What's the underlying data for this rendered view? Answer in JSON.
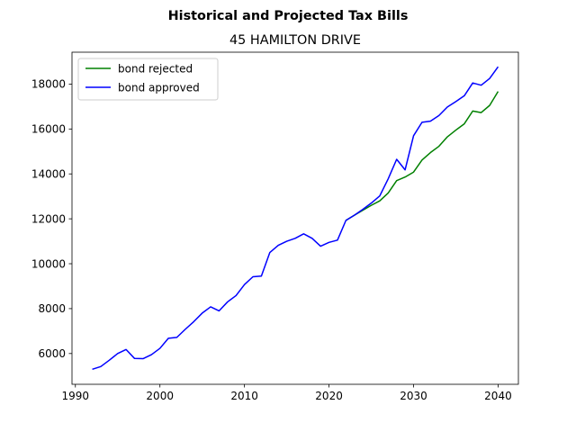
{
  "chart_data": {
    "type": "line",
    "title": "Historical and Projected Tax Bills",
    "subtitle": "45 HAMILTON DRIVE",
    "xlabel": "",
    "ylabel": "",
    "xlim": [
      1989.6,
      2042.4
    ],
    "ylim": [
      4630,
      19420
    ],
    "xticks": [
      1990,
      2000,
      2010,
      2020,
      2030,
      2040
    ],
    "yticks": [
      6000,
      8000,
      10000,
      12000,
      14000,
      16000,
      18000
    ],
    "grid": false,
    "legend_position": "upper left",
    "series": [
      {
        "name": "bond rejected",
        "color": "#008000",
        "x": [
          2022,
          2023,
          2024,
          2025,
          2026,
          2027,
          2028,
          2029,
          2030,
          2031,
          2032,
          2033,
          2034,
          2035,
          2036,
          2037,
          2038,
          2039,
          2040
        ],
        "y": [
          11930,
          12160,
          12380,
          12600,
          12800,
          13150,
          13700,
          13860,
          14080,
          14620,
          14950,
          15230,
          15650,
          15950,
          16230,
          16800,
          16730,
          17050,
          17670
        ]
      },
      {
        "name": "bond approved",
        "color": "#0000ff",
        "x": [
          1992,
          1993,
          1994,
          1995,
          1996,
          1997,
          1998,
          1999,
          2000,
          2001,
          2002,
          2003,
          2004,
          2005,
          2006,
          2007,
          2008,
          2009,
          2010,
          2011,
          2012,
          2013,
          2014,
          2015,
          2016,
          2017,
          2018,
          2019,
          2020,
          2021,
          2022,
          2023,
          2024,
          2025,
          2026,
          2027,
          2028,
          2029,
          2030,
          2031,
          2032,
          2033,
          2034,
          2035,
          2036,
          2037,
          2038,
          2039,
          2040
        ],
        "y": [
          5300,
          5420,
          5700,
          6000,
          6180,
          5780,
          5770,
          5950,
          6230,
          6680,
          6720,
          7080,
          7420,
          7800,
          8080,
          7900,
          8300,
          8580,
          9070,
          9420,
          9450,
          10500,
          10820,
          11000,
          11130,
          11330,
          11130,
          10780,
          10950,
          11050,
          11930,
          12160,
          12420,
          12700,
          13020,
          13780,
          14650,
          14180,
          15700,
          16300,
          16350,
          16600,
          16980,
          17220,
          17480,
          18050,
          17950,
          18250,
          18770
        ]
      }
    ]
  }
}
